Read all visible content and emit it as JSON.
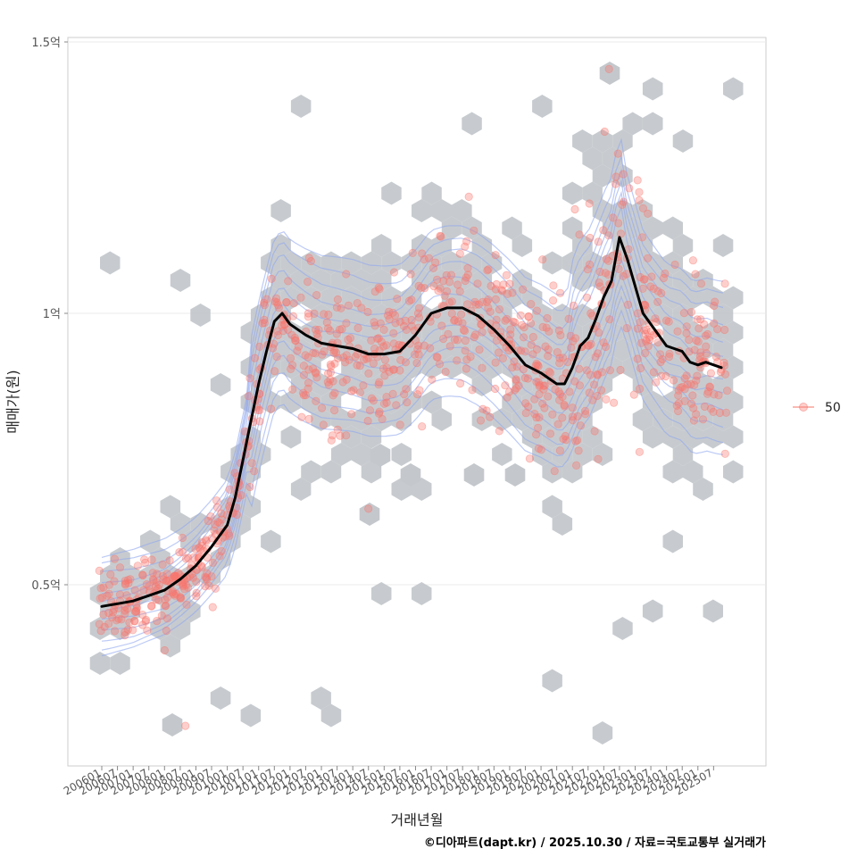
{
  "chart_data": {
    "type": "scatter",
    "title": "",
    "xlabel": "거래년월",
    "ylabel": "매매가(원)",
    "caption": "©디아파트(dapt.kr) / 2025.10.30 / 자료=국토교통부 실거래가",
    "x_range": [
      "2006-01",
      "2025-12"
    ],
    "ylim": [
      0.2,
      1.52
    ],
    "y_ticks": [
      {
        "value": 0.5,
        "label": "0.5억"
      },
      {
        "value": 1.0,
        "label": "1억"
      },
      {
        "value": 1.5,
        "label": "1.5억"
      }
    ],
    "x_tick_labels": [
      "200601",
      "200607",
      "200701",
      "200707",
      "200801",
      "200807",
      "200901",
      "200907",
      "201001",
      "201007",
      "201101",
      "201107",
      "201201",
      "201207",
      "201301",
      "201307",
      "201401",
      "201407",
      "201501",
      "201507",
      "201601",
      "201607",
      "201701",
      "201707",
      "201801",
      "201807",
      "201901",
      "201907",
      "202001",
      "202007",
      "202101",
      "202107",
      "202201",
      "202207",
      "202301",
      "202307",
      "202401",
      "202407",
      "202501",
      "202507"
    ],
    "legend": {
      "label": "50",
      "color": "#f8766d",
      "position": "right"
    },
    "trend_line": {
      "name": "moving average",
      "color": "#000000",
      "points": [
        [
          "2006-01",
          0.46
        ],
        [
          "2006-07",
          0.465
        ],
        [
          "2007-01",
          0.47
        ],
        [
          "2007-07",
          0.48
        ],
        [
          "2008-01",
          0.49
        ],
        [
          "2008-07",
          0.51
        ],
        [
          "2009-01",
          0.535
        ],
        [
          "2009-07",
          0.57
        ],
        [
          "2010-01",
          0.61
        ],
        [
          "2010-04",
          0.66
        ],
        [
          "2010-07",
          0.73
        ],
        [
          "2010-10",
          0.8
        ],
        [
          "2011-01",
          0.87
        ],
        [
          "2011-04",
          0.93
        ],
        [
          "2011-07",
          0.985
        ],
        [
          "2011-10",
          1.0
        ],
        [
          "2012-01",
          0.98
        ],
        [
          "2012-07",
          0.96
        ],
        [
          "2013-01",
          0.945
        ],
        [
          "2013-07",
          0.94
        ],
        [
          "2014-01",
          0.935
        ],
        [
          "2014-07",
          0.925
        ],
        [
          "2015-01",
          0.925
        ],
        [
          "2015-07",
          0.93
        ],
        [
          "2016-01",
          0.96
        ],
        [
          "2016-07",
          1.0
        ],
        [
          "2017-01",
          1.01
        ],
        [
          "2017-07",
          1.01
        ],
        [
          "2018-01",
          0.995
        ],
        [
          "2018-07",
          0.97
        ],
        [
          "2019-01",
          0.94
        ],
        [
          "2019-07",
          0.905
        ],
        [
          "2020-01",
          0.89
        ],
        [
          "2020-07",
          0.87
        ],
        [
          "2020-10",
          0.87
        ],
        [
          "2021-01",
          0.9
        ],
        [
          "2021-04",
          0.94
        ],
        [
          "2021-07",
          0.955
        ],
        [
          "2021-10",
          0.99
        ],
        [
          "2022-01",
          1.03
        ],
        [
          "2022-04",
          1.06
        ],
        [
          "2022-07",
          1.14
        ],
        [
          "2022-10",
          1.1
        ],
        [
          "2023-01",
          1.05
        ],
        [
          "2023-04",
          1.0
        ],
        [
          "2023-07",
          0.98
        ],
        [
          "2023-10",
          0.96
        ],
        [
          "2024-01",
          0.94
        ],
        [
          "2024-07",
          0.93
        ],
        [
          "2024-10",
          0.91
        ],
        [
          "2025-01",
          0.905
        ],
        [
          "2025-04",
          0.91
        ],
        [
          "2025-07",
          0.905
        ],
        [
          "2025-10",
          0.9
        ]
      ]
    },
    "points_sample": [
      [
        "2006-03",
        0.48
      ],
      [
        "2006-05",
        0.44
      ],
      [
        "2006-08",
        0.47
      ],
      [
        "2006-10",
        0.5
      ],
      [
        "2007-02",
        0.45
      ],
      [
        "2007-05",
        0.49
      ],
      [
        "2007-08",
        0.46
      ],
      [
        "2007-11",
        0.5
      ],
      [
        "2008-02",
        0.52
      ],
      [
        "2008-05",
        0.48
      ],
      [
        "2008-08",
        0.5
      ],
      [
        "2008-11",
        0.53
      ],
      [
        "2009-02",
        0.55
      ],
      [
        "2009-05",
        0.58
      ],
      [
        "2009-08",
        0.6
      ],
      [
        "2009-11",
        0.62
      ],
      [
        "2010-02",
        0.64
      ],
      [
        "2010-05",
        0.68
      ],
      [
        "2010-08",
        0.74
      ],
      [
        "2010-11",
        0.8
      ],
      [
        "2011-02",
        0.9
      ],
      [
        "2011-05",
        0.96
      ],
      [
        "2011-08",
        1.02
      ],
      [
        "2011-11",
        0.98
      ],
      [
        "2012-03",
        0.95
      ],
      [
        "2012-08",
        1.0
      ],
      [
        "2013-02",
        0.93
      ],
      [
        "2013-08",
        0.97
      ],
      [
        "2014-02",
        0.92
      ],
      [
        "2014-08",
        0.95
      ],
      [
        "2015-02",
        0.9
      ],
      [
        "2015-08",
        0.94
      ],
      [
        "2016-02",
        1.0
      ],
      [
        "2016-08",
        1.05
      ],
      [
        "2017-02",
        1.02
      ],
      [
        "2017-08",
        1.06
      ],
      [
        "2018-02",
        0.98
      ],
      [
        "2018-08",
        0.95
      ],
      [
        "2019-02",
        0.9
      ],
      [
        "2019-08",
        0.88
      ],
      [
        "2020-02",
        0.86
      ],
      [
        "2020-08",
        0.84
      ],
      [
        "2021-02",
        0.92
      ],
      [
        "2021-08",
        1.0
      ],
      [
        "2022-02",
        1.1
      ],
      [
        "2022-08",
        1.2
      ],
      [
        "2023-02",
        1.0
      ],
      [
        "2023-08",
        0.96
      ],
      [
        "2024-02",
        0.92
      ],
      [
        "2024-08",
        0.88
      ],
      [
        "2025-02",
        0.9
      ],
      [
        "2025-08",
        0.92
      ],
      [
        "2008-09",
        0.24
      ],
      [
        "2014-07",
        0.64
      ],
      [
        "2022-03",
        1.45
      ]
    ]
  }
}
